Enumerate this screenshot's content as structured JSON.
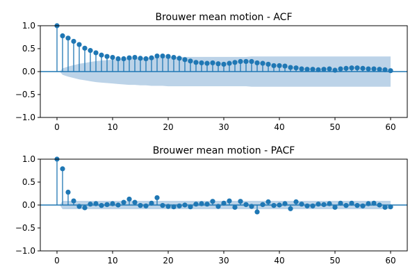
{
  "colors": {
    "stem": "#1f77b4",
    "band": "#bcd3e8",
    "zero_line": "#1f77b4"
  },
  "chart_data": [
    {
      "type": "stem",
      "title": "Brouwer mean motion - ACF",
      "xlabel": "",
      "ylabel": "",
      "xlim": [
        -3,
        63
      ],
      "ylim": [
        -1,
        1
      ],
      "xticks": [
        0,
        10,
        20,
        30,
        40,
        50,
        60
      ],
      "yticks": [
        -1.0,
        -0.5,
        0.0,
        0.5,
        1.0
      ],
      "ytick_labels": [
        "−1.0",
        "−0.5",
        "0.0",
        "0.5",
        "1.0"
      ],
      "xtick_labels": [
        "0",
        "10",
        "20",
        "30",
        "40",
        "50",
        "60"
      ],
      "lags": [
        0,
        1,
        2,
        3,
        4,
        5,
        6,
        7,
        8,
        9,
        10,
        11,
        12,
        13,
        14,
        15,
        16,
        17,
        18,
        19,
        20,
        21,
        22,
        23,
        24,
        25,
        26,
        27,
        28,
        29,
        30,
        31,
        32,
        33,
        34,
        35,
        36,
        37,
        38,
        39,
        40,
        41,
        42,
        43,
        44,
        45,
        46,
        47,
        48,
        49,
        50,
        51,
        52,
        53,
        54,
        55,
        56,
        57,
        58,
        59,
        60
      ],
      "values": [
        1.0,
        0.78,
        0.73,
        0.66,
        0.59,
        0.51,
        0.46,
        0.41,
        0.36,
        0.33,
        0.31,
        0.28,
        0.28,
        0.3,
        0.31,
        0.29,
        0.28,
        0.3,
        0.34,
        0.34,
        0.33,
        0.31,
        0.29,
        0.26,
        0.23,
        0.2,
        0.19,
        0.18,
        0.19,
        0.17,
        0.16,
        0.18,
        0.2,
        0.22,
        0.22,
        0.22,
        0.19,
        0.18,
        0.16,
        0.13,
        0.13,
        0.12,
        0.09,
        0.08,
        0.06,
        0.05,
        0.05,
        0.04,
        0.05,
        0.06,
        0.03,
        0.06,
        0.07,
        0.08,
        0.08,
        0.07,
        0.06,
        0.06,
        0.05,
        0.04,
        0.02
      ],
      "confint_upper": [
        0.0,
        0.07,
        0.11,
        0.14,
        0.17,
        0.19,
        0.21,
        0.23,
        0.24,
        0.25,
        0.26,
        0.27,
        0.28,
        0.29,
        0.29,
        0.3,
        0.3,
        0.31,
        0.31,
        0.31,
        0.32,
        0.32,
        0.32,
        0.32,
        0.32,
        0.32,
        0.32,
        0.32,
        0.32,
        0.32,
        0.32,
        0.32,
        0.32,
        0.32,
        0.32,
        0.33,
        0.33,
        0.33,
        0.33,
        0.33,
        0.33,
        0.33,
        0.33,
        0.33,
        0.33,
        0.33,
        0.33,
        0.33,
        0.33,
        0.33,
        0.33,
        0.33,
        0.33,
        0.33,
        0.33,
        0.33,
        0.33,
        0.33,
        0.33,
        0.33,
        0.33
      ]
    },
    {
      "type": "stem",
      "title": "Brouwer mean motion - PACF",
      "xlabel": "",
      "ylabel": "",
      "xlim": [
        -3,
        63
      ],
      "ylim": [
        -1,
        1
      ],
      "xticks": [
        0,
        10,
        20,
        30,
        40,
        50,
        60
      ],
      "yticks": [
        -1.0,
        -0.5,
        0.0,
        0.5,
        1.0
      ],
      "ytick_labels": [
        "−1.0",
        "−0.5",
        "0.0",
        "0.5",
        "1.0"
      ],
      "xtick_labels": [
        "0",
        "10",
        "20",
        "30",
        "40",
        "50",
        "60"
      ],
      "lags": [
        0,
        1,
        2,
        3,
        4,
        5,
        6,
        7,
        8,
        9,
        10,
        11,
        12,
        13,
        14,
        15,
        16,
        17,
        18,
        19,
        20,
        21,
        22,
        23,
        24,
        25,
        26,
        27,
        28,
        29,
        30,
        31,
        32,
        33,
        34,
        35,
        36,
        37,
        38,
        39,
        40,
        41,
        42,
        43,
        44,
        45,
        46,
        47,
        48,
        49,
        50,
        51,
        52,
        53,
        54,
        55,
        56,
        57,
        58,
        59,
        60
      ],
      "values": [
        1.0,
        0.79,
        0.28,
        0.09,
        -0.03,
        -0.06,
        0.02,
        0.03,
        -0.01,
        0.01,
        0.03,
        0.0,
        0.06,
        0.13,
        0.06,
        -0.01,
        -0.02,
        0.04,
        0.16,
        -0.01,
        -0.03,
        -0.04,
        -0.02,
        0.0,
        -0.04,
        0.02,
        0.03,
        0.02,
        0.08,
        -0.03,
        0.04,
        0.09,
        -0.05,
        0.08,
        0.01,
        -0.03,
        -0.15,
        0.01,
        0.07,
        -0.01,
        0.0,
        0.03,
        -0.08,
        0.07,
        0.02,
        -0.02,
        -0.02,
        0.02,
        0.01,
        0.03,
        -0.05,
        0.04,
        -0.01,
        0.04,
        -0.01,
        -0.02,
        0.03,
        0.04,
        0.0,
        -0.05,
        -0.04
      ],
      "confint_upper": [
        0.0,
        0.09,
        0.09,
        0.09,
        0.09,
        0.09,
        0.09,
        0.09,
        0.09,
        0.09,
        0.09,
        0.09,
        0.09,
        0.09,
        0.09,
        0.09,
        0.09,
        0.09,
        0.09,
        0.09,
        0.09,
        0.09,
        0.09,
        0.09,
        0.09,
        0.09,
        0.09,
        0.09,
        0.09,
        0.09,
        0.09,
        0.09,
        0.09,
        0.09,
        0.09,
        0.09,
        0.09,
        0.09,
        0.09,
        0.09,
        0.09,
        0.09,
        0.09,
        0.09,
        0.09,
        0.09,
        0.09,
        0.09,
        0.09,
        0.09,
        0.09,
        0.09,
        0.09,
        0.09,
        0.09,
        0.09,
        0.09,
        0.09,
        0.09,
        0.09,
        0.09
      ]
    }
  ]
}
